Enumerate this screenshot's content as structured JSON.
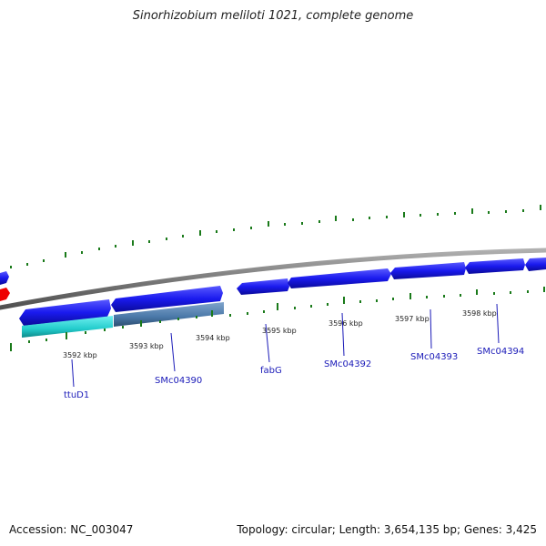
{
  "title": "Sinorhizobium meliloti 1021, complete genome",
  "footer": {
    "accession": "Accession: NC_003047",
    "summary": "Topology: circular; Length: 3,654,135 bp; Genes: 3,425"
  },
  "colors": {
    "forward_gene": "#1a1aee",
    "reverse_gene": "#1a1aee",
    "highlight_cyan": "#22cccc",
    "highlight_steel": "#4a78a8",
    "start_marker": "#ee0000",
    "genome_line": "#808080",
    "ticks": "#1a7a1a",
    "label_line": "#1a1ab8"
  },
  "scale_labels": [
    "3592 kbp",
    "3593 kbp",
    "3594 kbp",
    "3595 kbp",
    "3596 kbp",
    "3597 kbp",
    "3598 kbp"
  ],
  "gene_labels": [
    "ttuD1",
    "SMc04390",
    "fabG",
    "SMc04392",
    "SMc04393",
    "SMc04394"
  ]
}
